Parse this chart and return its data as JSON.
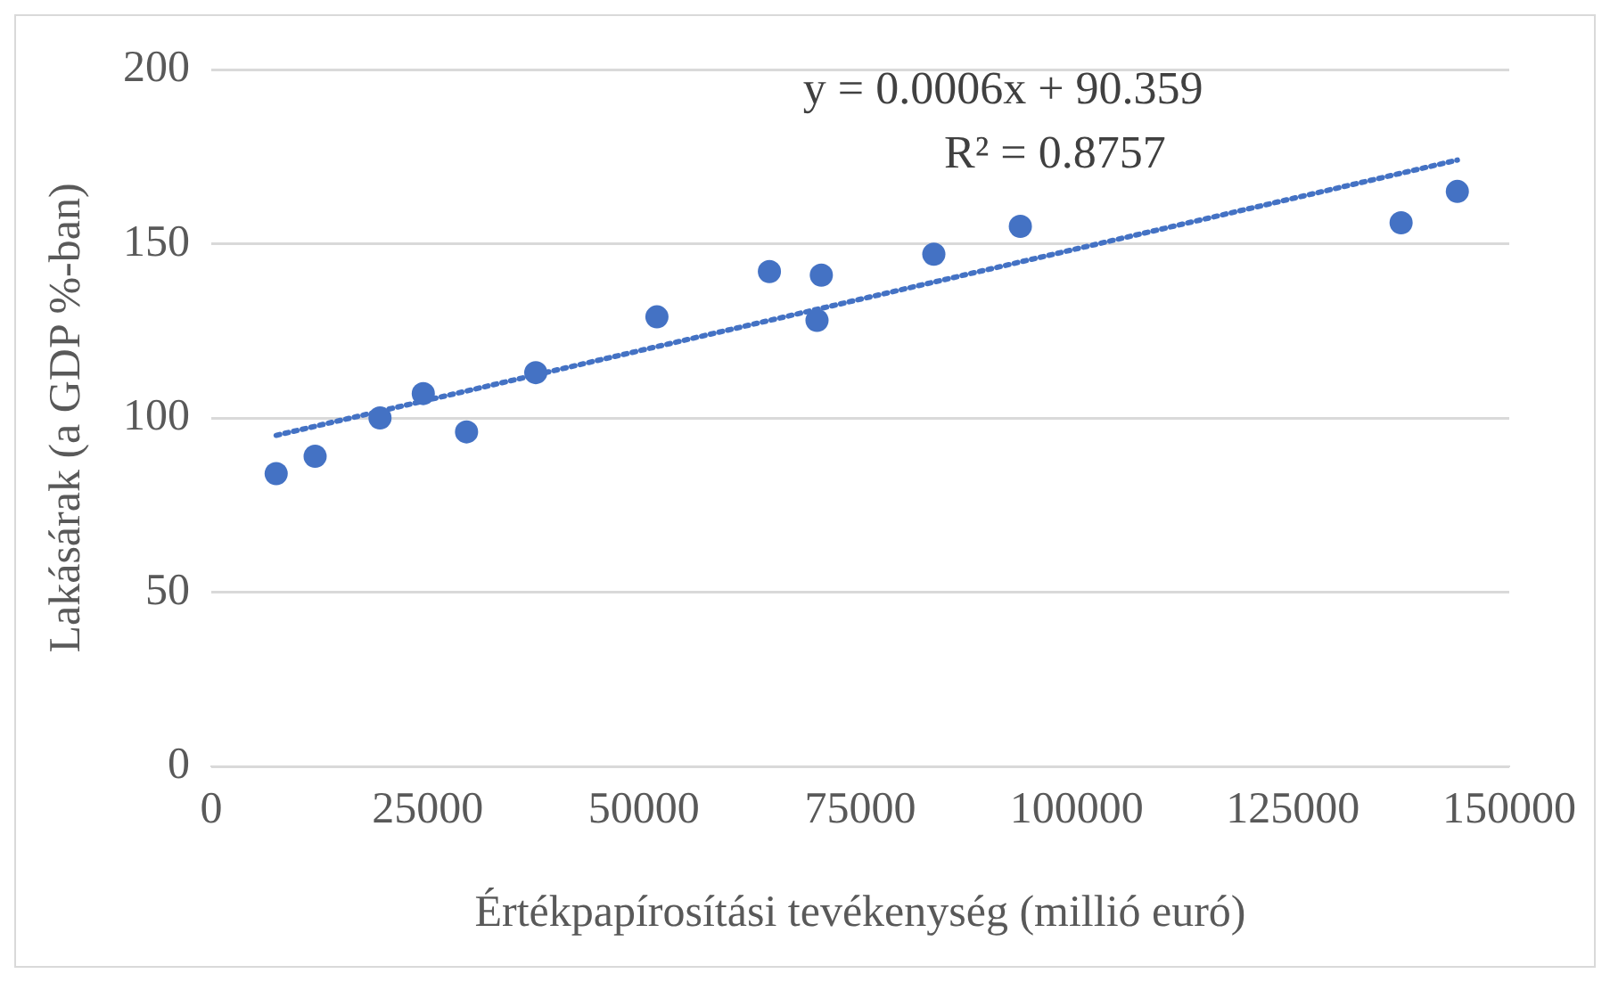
{
  "chart_data": {
    "type": "scatter",
    "xlabel": "Értékpapírosítási tevékenység (millió euró)",
    "ylabel": "Lakásárak (a GDP %-ban)",
    "annotations": [
      "y = 0.0006x + 90.359",
      "R² = 0.8757"
    ],
    "xlim": [
      0,
      150000
    ],
    "xticks": [
      0,
      25000,
      50000,
      75000,
      100000,
      125000,
      150000
    ],
    "ylim": [
      0,
      200
    ],
    "yticks": [
      0,
      50,
      100,
      150,
      200
    ],
    "grid": "y",
    "legend": false,
    "series": [
      {
        "color": "#4472c4",
        "marker": "circle",
        "x": [
          7500,
          12000,
          19500,
          24500,
          29500,
          37500,
          51500,
          64500,
          70500,
          70000,
          83500,
          93500,
          137500,
          144000
        ],
        "values": [
          84,
          89,
          100,
          107,
          96,
          113,
          129,
          142,
          141,
          128,
          147,
          155,
          156,
          165
        ]
      },
      {
        "type": "line",
        "color": "#4472c4",
        "marker": "none",
        "line_style": "dotted",
        "x": [
          7500,
          144000
        ],
        "values": [
          95,
          174
        ]
      }
    ]
  }
}
